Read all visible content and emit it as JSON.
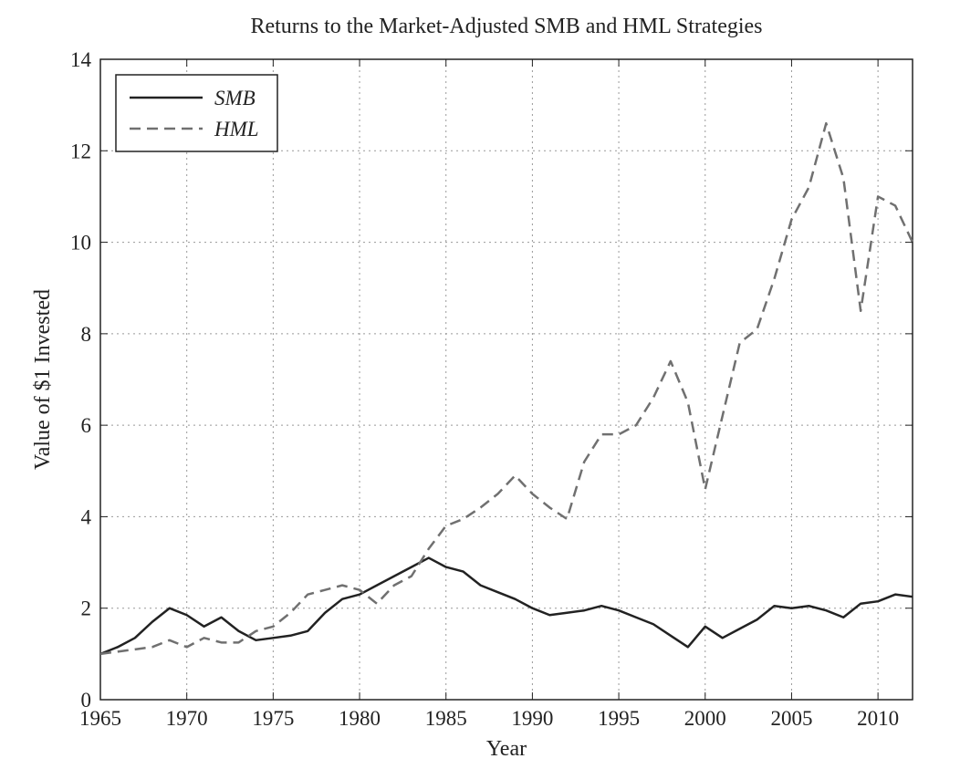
{
  "chart_data": {
    "type": "line",
    "title": "Returns to the Market-Adjusted SMB and HML Strategies",
    "xlabel": "Year",
    "ylabel": "Value of $1 Invested",
    "x": [
      1965,
      1966,
      1967,
      1968,
      1969,
      1970,
      1971,
      1972,
      1973,
      1974,
      1975,
      1976,
      1977,
      1978,
      1979,
      1980,
      1981,
      1982,
      1983,
      1984,
      1985,
      1986,
      1987,
      1988,
      1989,
      1990,
      1991,
      1992,
      1993,
      1994,
      1995,
      1996,
      1997,
      1998,
      1999,
      2000,
      2001,
      2002,
      2003,
      2004,
      2005,
      2006,
      2007,
      2008,
      2009,
      2010,
      2011,
      2012
    ],
    "series": [
      {
        "name": "SMB",
        "color": "#222222",
        "linestyle": "solid",
        "values": [
          1.0,
          1.15,
          1.35,
          1.7,
          2.0,
          1.85,
          1.6,
          1.8,
          1.5,
          1.3,
          1.35,
          1.4,
          1.5,
          1.9,
          2.2,
          2.3,
          2.5,
          2.7,
          2.9,
          3.1,
          2.9,
          2.8,
          2.5,
          2.35,
          2.2,
          2.0,
          1.85,
          1.9,
          1.95,
          2.05,
          1.95,
          1.8,
          1.65,
          1.4,
          1.15,
          1.6,
          1.35,
          1.55,
          1.75,
          2.05,
          2.0,
          2.05,
          1.95,
          1.8,
          2.1,
          2.15,
          2.3,
          2.25
        ]
      },
      {
        "name": "HML",
        "color": "#707070",
        "linestyle": "dashed",
        "values": [
          1.0,
          1.05,
          1.1,
          1.15,
          1.3,
          1.15,
          1.35,
          1.25,
          1.25,
          1.5,
          1.6,
          1.9,
          2.3,
          2.4,
          2.5,
          2.4,
          2.1,
          2.5,
          2.7,
          3.3,
          3.8,
          3.95,
          4.2,
          4.5,
          4.9,
          4.5,
          4.2,
          3.95,
          5.2,
          5.8,
          5.8,
          6.0,
          6.6,
          7.4,
          6.5,
          4.6,
          6.2,
          7.8,
          8.1,
          9.2,
          10.5,
          11.2,
          12.6,
          11.4,
          8.5,
          11.0,
          10.8,
          10.0
        ]
      }
    ],
    "xlim": [
      1965,
      2012
    ],
    "ylim": [
      0,
      14
    ],
    "xticks": [
      1965,
      1970,
      1975,
      1980,
      1985,
      1990,
      1995,
      2000,
      2005,
      2010
    ],
    "yticks": [
      0,
      2,
      4,
      6,
      8,
      10,
      12,
      14
    ],
    "grid": true,
    "legend": "upper-left"
  }
}
